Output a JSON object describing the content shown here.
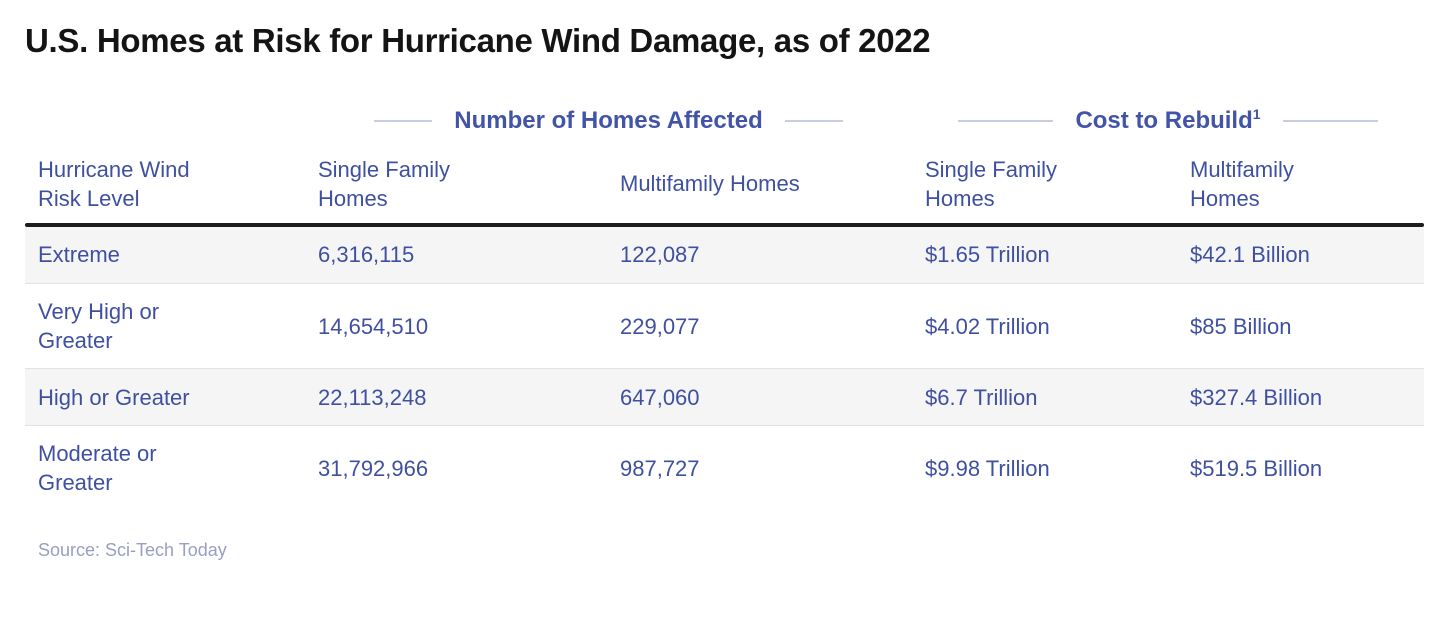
{
  "title": "U.S. Homes at Risk for Hurricane Wind Damage, as of 2022",
  "table": {
    "group_headers": [
      {
        "label": "Number of Homes Affected",
        "footnote_marker": ""
      },
      {
        "label": "Cost to Rebuild",
        "footnote_marker": "1"
      }
    ],
    "columns": [
      "Hurricane Wind Risk Level",
      "Single Family Homes",
      "Multifamily Homes",
      "Single Family Homes",
      "Multifamily Homes"
    ],
    "rows": [
      {
        "risk_level": "Extreme",
        "homes_sf": "6,316,115",
        "homes_mf": "122,087",
        "cost_sf": "$1.65 Trillion",
        "cost_mf": "$42.1 Billion"
      },
      {
        "risk_level": "Very High or Greater",
        "homes_sf": "14,654,510",
        "homes_mf": "229,077",
        "cost_sf": "$4.02 Trillion",
        "cost_mf": "$85 Billion"
      },
      {
        "risk_level": "High or Greater",
        "homes_sf": "22,113,248",
        "homes_mf": "647,060",
        "cost_sf": "$6.7 Trillion",
        "cost_mf": "$327.4 Billion"
      },
      {
        "risk_level": "Moderate or Greater",
        "homes_sf": "31,792,966",
        "homes_mf": "987,727",
        "cost_sf": "$9.98 Trillion",
        "cost_mf": "$519.5 Billion"
      }
    ]
  },
  "source": "Source: Sci-Tech Today",
  "colors": {
    "title_text": "#141414",
    "table_text": "#3f50a0",
    "group_header_text": "#4254a8",
    "decorative_line": "#c8cce4",
    "row_stripe": "#f5f5f6",
    "header_rule": "#1d1d1f",
    "row_divider": "#e1e1e6",
    "source_text": "#989fc2",
    "background": "#ffffff"
  },
  "chart_data": {
    "type": "table",
    "title": "U.S. Homes at Risk for Hurricane Wind Damage, as of 2022",
    "row_header": "Hurricane Wind Risk Level",
    "column_groups": [
      {
        "label": "Number of Homes Affected",
        "columns": [
          "Single Family Homes",
          "Multifamily Homes"
        ]
      },
      {
        "label": "Cost to Rebuild¹",
        "columns": [
          "Single Family Homes",
          "Multifamily Homes"
        ]
      }
    ],
    "rows": [
      {
        "risk_level": "Extreme",
        "homes_affected_single_family": 6316115,
        "homes_affected_multifamily": 122087,
        "cost_to_rebuild_single_family_usd": "1.65 Trillion",
        "cost_to_rebuild_multifamily_usd": "42.1 Billion"
      },
      {
        "risk_level": "Very High or Greater",
        "homes_affected_single_family": 14654510,
        "homes_affected_multifamily": 229077,
        "cost_to_rebuild_single_family_usd": "4.02 Trillion",
        "cost_to_rebuild_multifamily_usd": "85 Billion"
      },
      {
        "risk_level": "High or Greater",
        "homes_affected_single_family": 22113248,
        "homes_affected_multifamily": 647060,
        "cost_to_rebuild_single_family_usd": "6.7 Trillion",
        "cost_to_rebuild_multifamily_usd": "327.4 Billion"
      },
      {
        "risk_level": "Moderate or Greater",
        "homes_affected_single_family": 31792966,
        "homes_affected_multifamily": 987727,
        "cost_to_rebuild_single_family_usd": "9.98 Trillion",
        "cost_to_rebuild_multifamily_usd": "519.5 Billion"
      }
    ],
    "source": "Sci-Tech Today"
  }
}
